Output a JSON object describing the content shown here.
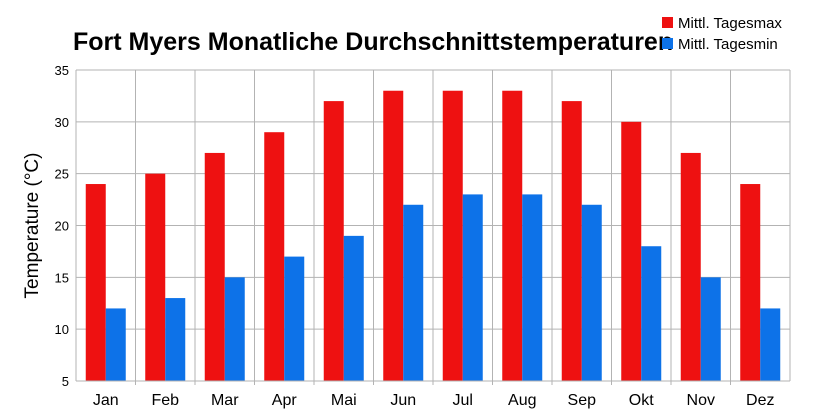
{
  "chart_data": {
    "type": "bar",
    "title": "Fort Myers Monatliche Durchschnittstemperaturen",
    "xlabel": "",
    "ylabel": "Temperature (°C)",
    "ylim": [
      5,
      35
    ],
    "yticks": [
      5,
      10,
      15,
      20,
      25,
      30,
      35
    ],
    "grid": true,
    "legend_position": "top-right",
    "categories": [
      "Jan",
      "Feb",
      "Mar",
      "Apr",
      "Mai",
      "Jun",
      "Jul",
      "Aug",
      "Sep",
      "Okt",
      "Nov",
      "Dez"
    ],
    "series": [
      {
        "name": "Mittl. Tagesmax",
        "color": "#ee1111",
        "values": [
          24,
          25,
          27,
          29,
          32,
          33,
          33,
          33,
          32,
          30,
          27,
          24
        ]
      },
      {
        "name": "Mittl. Tagesmin",
        "color": "#0d72e8",
        "values": [
          12,
          13,
          15,
          17,
          19,
          22,
          23,
          23,
          22,
          18,
          15,
          12
        ]
      }
    ]
  }
}
